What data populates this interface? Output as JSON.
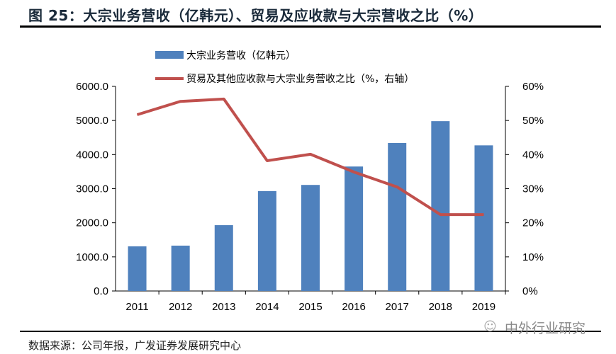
{
  "title": "图 25：大宗业务营收（亿韩元）、贸易及应收款与大宗营收之比（%）",
  "source": "数据来源：公司年报，广发证券发展研究中心",
  "watermark": "中外行业研究",
  "chart_data": {
    "type": "bar+line",
    "categories": [
      "2011",
      "2012",
      "2013",
      "2014",
      "2015",
      "2016",
      "2017",
      "2018",
      "2019"
    ],
    "series": [
      {
        "name": "大宗业务营收（亿韩元）",
        "type": "bar",
        "axis": "left",
        "color": "#4f81bd",
        "values": [
          1310,
          1330,
          1930,
          2930,
          3110,
          3650,
          4340,
          4980,
          4270
        ]
      },
      {
        "name": "贸易及其他应收款与大宗业务营收之比（%，右轴）",
        "type": "line",
        "axis": "right",
        "color": "#c0504d",
        "values": [
          51.7,
          55.6,
          56.3,
          38.2,
          40.1,
          34.9,
          30.5,
          22.4,
          22.4
        ]
      }
    ],
    "left_axis": {
      "min": 0,
      "max": 6000,
      "ticks": [
        "0.0",
        "1000.0",
        "2000.0",
        "3000.0",
        "4000.0",
        "5000.0",
        "6000.0"
      ]
    },
    "right_axis": {
      "min": 0,
      "max": 60,
      "ticks": [
        "0%",
        "10%",
        "20%",
        "30%",
        "40%",
        "50%",
        "60%"
      ]
    },
    "legend_position": "top",
    "grid": false
  }
}
